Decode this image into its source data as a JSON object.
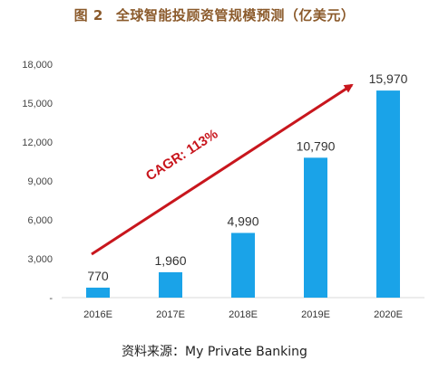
{
  "figure": {
    "number": "图 2",
    "title": "全球智能投顾资管规模预测（亿美元）",
    "source": "资料来源：My Private Banking"
  },
  "chart_data": {
    "type": "bar",
    "categories": [
      "2016E",
      "2017E",
      "2018E",
      "2019E",
      "2020E"
    ],
    "values": [
      770,
      1960,
      4990,
      10790,
      15970
    ],
    "data_labels": [
      "770",
      "1,960",
      "4,990",
      "10,790",
      "15,970"
    ],
    "yticks": [
      "-",
      "3,000",
      "6,000",
      "9,000",
      "12,000",
      "15,000",
      "18,000"
    ],
    "ylim": [
      0,
      18000
    ],
    "grid": false,
    "bar_color": "#1aa3e8",
    "annotation": {
      "text": "CAGR: 113%",
      "color": "#c8161d"
    }
  }
}
